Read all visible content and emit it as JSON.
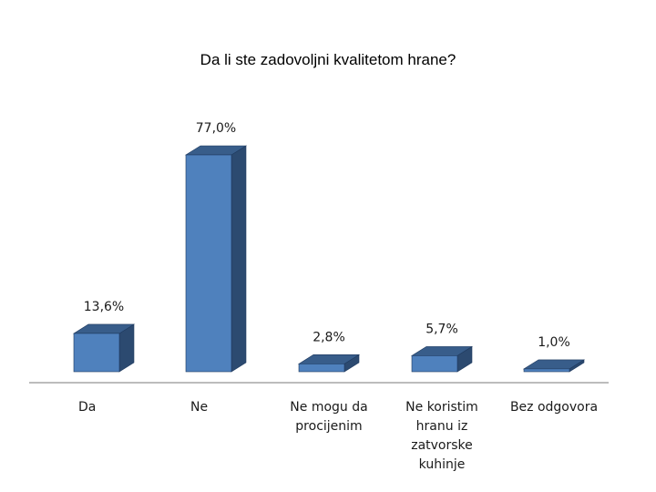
{
  "chart_data": {
    "type": "bar",
    "title": "Da li ste zadovoljni kvalitetom hrane?",
    "xlabel": "",
    "ylabel": "",
    "ylim": [
      0,
      77
    ],
    "categories": [
      "Da",
      "Ne",
      "Ne mogu da procijenim",
      "Ne koristim hranu iz zatvorske kuhinje",
      "Bez odgovora"
    ],
    "category_lines": [
      [
        "Da"
      ],
      [
        "Ne"
      ],
      [
        "Ne mogu da",
        "procijenim"
      ],
      [
        "Ne koristim",
        "hranu iz",
        "zatvorske",
        "kuhinje"
      ],
      [
        "Bez odgovora"
      ]
    ],
    "values": [
      13.6,
      77.0,
      2.8,
      5.7,
      1.0
    ],
    "data_labels": [
      "13,6%",
      "77,0%",
      "2,8%",
      "5,7%",
      "1,0%"
    ],
    "grid": false,
    "legend": "none",
    "colors": {
      "front": "#4f81bd",
      "side": "#2c4a70",
      "top": "#385d8a",
      "edge": "#1f3a5f",
      "floor": "#a6a6a6"
    }
  }
}
